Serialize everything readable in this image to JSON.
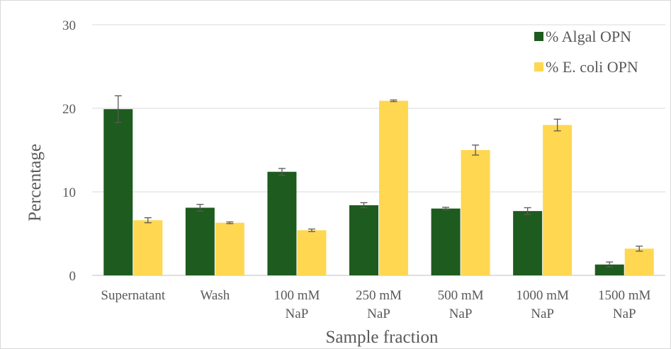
{
  "chart_data": {
    "type": "bar",
    "title": "",
    "xlabel": "Sample fraction",
    "ylabel": "Percentage",
    "ylim": [
      0,
      30
    ],
    "yticks": [
      0,
      10,
      20,
      30
    ],
    "grid": true,
    "legend_position": "top-right",
    "categories": [
      [
        "Supernatant"
      ],
      [
        "Wash"
      ],
      [
        "100 mM",
        "NaP"
      ],
      [
        "250 mM",
        "NaP"
      ],
      [
        "500 mM",
        "NaP"
      ],
      [
        "1000 mM",
        "NaP"
      ],
      [
        "1500 mM",
        "NaP"
      ]
    ],
    "series": [
      {
        "name": "% Algal OPN",
        "color": "#1e5b1e",
        "values": [
          19.9,
          8.1,
          12.4,
          8.4,
          8.0,
          7.7,
          1.3
        ],
        "errors": [
          1.6,
          0.4,
          0.4,
          0.3,
          0.15,
          0.4,
          0.3
        ]
      },
      {
        "name": "% E. coli OPN",
        "color": "#ffd751",
        "values": [
          6.6,
          6.3,
          5.4,
          20.9,
          15.0,
          18.0,
          3.2
        ],
        "errors": [
          0.3,
          0.1,
          0.15,
          0.1,
          0.6,
          0.7,
          0.3
        ]
      }
    ]
  }
}
